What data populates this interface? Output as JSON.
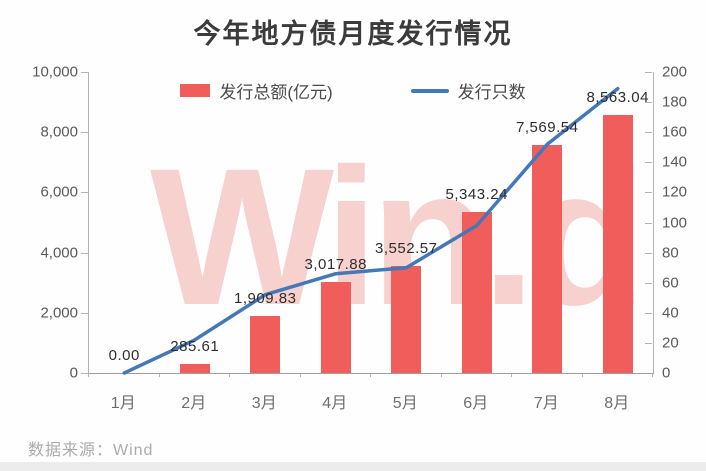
{
  "chart": {
    "title": "今年地方债月度发行情况",
    "legend": [
      "发行总额(亿元)",
      "发行只数"
    ]
  },
  "watermark": {
    "text": "Win.d"
  },
  "footer": {
    "source": "数据来源：Wind"
  },
  "chart_data": {
    "type": "bar",
    "subtype": "combo-bar-line-dual-axis",
    "title": "今年地方债月度发行情况",
    "categories": [
      "1月",
      "2月",
      "3月",
      "4月",
      "5月",
      "6月",
      "7月",
      "8月"
    ],
    "series": [
      {
        "name": "发行总额(亿元)",
        "type": "bar",
        "axis": "left",
        "color": "#f15d5b",
        "values": [
          0,
          285.61,
          1909.83,
          3017.88,
          3552.57,
          5343.24,
          7569.54,
          8563.04
        ],
        "data_labels": [
          "0.00",
          "285.61",
          "1,909.83",
          "3,017.88",
          "3,552.57",
          "5,343.24",
          "7,569.54",
          "8,563.04"
        ]
      },
      {
        "name": "发行只数",
        "type": "line",
        "axis": "right",
        "color": "#4478b9",
        "values": [
          0,
          22,
          52,
          66,
          70,
          98,
          152,
          189
        ],
        "values_estimated_from_pixels": true
      }
    ],
    "left_axis": {
      "range": [
        0,
        10000
      ],
      "ticks": [
        "10,000",
        "8,000",
        "6,000",
        "4,000",
        "2,000",
        "0"
      ]
    },
    "right_axis": {
      "range": [
        0,
        200
      ],
      "ticks": [
        "200",
        "180",
        "160",
        "140",
        "120",
        "100",
        "80",
        "60",
        "40",
        "20",
        "0"
      ]
    },
    "grid": false,
    "legend_position": "top"
  },
  "colors": {
    "bar": "#f15d5b",
    "line": "#4478b9",
    "watermark": "#f7d1ce",
    "title_text": "#3b3b3b",
    "axis_text": "#595959",
    "data_label_text": "#2e2e2e",
    "axis_line": "#b3b3b3",
    "footer_text": "#ababab"
  }
}
